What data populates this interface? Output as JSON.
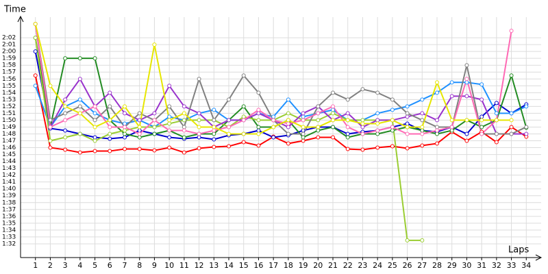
{
  "chart_data": {
    "type": "line",
    "x_label": "Laps",
    "y_label": "Time",
    "x": [
      1,
      2,
      3,
      4,
      5,
      6,
      7,
      8,
      9,
      10,
      11,
      12,
      13,
      14,
      15,
      16,
      17,
      18,
      19,
      20,
      21,
      22,
      23,
      24,
      25,
      26,
      27,
      28,
      29,
      30,
      31,
      32,
      33,
      34
    ],
    "xlim": [
      0,
      35
    ],
    "xticks": [
      1,
      2,
      3,
      4,
      5,
      6,
      7,
      8,
      9,
      10,
      11,
      12,
      13,
      14,
      15,
      16,
      17,
      18,
      19,
      20,
      21,
      22,
      23,
      24,
      25,
      26,
      27,
      28,
      29,
      30,
      31,
      32,
      33,
      34
    ],
    "ylim": [
      90,
      125
    ],
    "yticks": [
      {
        "value": 92,
        "label": "1:32"
      },
      {
        "value": 93,
        "label": "1:33"
      },
      {
        "value": 94,
        "label": "1:34"
      },
      {
        "value": 95,
        "label": "1:35"
      },
      {
        "value": 96,
        "label": "1:36"
      },
      {
        "value": 97,
        "label": "1:37"
      },
      {
        "value": 98,
        "label": "1:38"
      },
      {
        "value": 99,
        "label": "1:39"
      },
      {
        "value": 100,
        "label": "1:40"
      },
      {
        "value": 101,
        "label": "1:41"
      },
      {
        "value": 102,
        "label": "1:42"
      },
      {
        "value": 103,
        "label": "1:43"
      },
      {
        "value": 104,
        "label": "1:44"
      },
      {
        "value": 105,
        "label": "1:45"
      },
      {
        "value": 106,
        "label": "1:46"
      },
      {
        "value": 107,
        "label": "1:47"
      },
      {
        "value": 108,
        "label": "1:48"
      },
      {
        "value": 109,
        "label": "1:49"
      },
      {
        "value": 110,
        "label": "1:50"
      },
      {
        "value": 111,
        "label": "1:51"
      },
      {
        "value": 112,
        "label": "1:52"
      },
      {
        "value": 113,
        "label": "1:53"
      },
      {
        "value": 114,
        "label": "1:54"
      },
      {
        "value": 115,
        "label": "1:55"
      },
      {
        "value": 116,
        "label": "1:56"
      },
      {
        "value": 117,
        "label": "1:57"
      },
      {
        "value": 118,
        "label": "1:58"
      },
      {
        "value": 119,
        "label": "1:59"
      },
      {
        "value": 120,
        "label": "2:00"
      },
      {
        "value": 121,
        "label": "2:01"
      },
      {
        "value": 122,
        "label": "2:02"
      }
    ],
    "grid": true,
    "series": [
      {
        "color": "#ff0000",
        "values": [
          116.5,
          106,
          105.7,
          105.3,
          105.5,
          105.5,
          105.8,
          105.8,
          105.6,
          106,
          105.3,
          105.9,
          106.1,
          106.2,
          106.8,
          106.3,
          107.6,
          106.6,
          107,
          107.5,
          107.5,
          105.8,
          105.7,
          106,
          106.2,
          105.9,
          106.3,
          106.6,
          108.3,
          107,
          108.3,
          106.8,
          109,
          107.6
        ]
      },
      {
        "color": "#0000cd",
        "values": [
          120,
          108.8,
          108.5,
          108,
          107.5,
          107.3,
          107.5,
          108.5,
          108,
          107.5,
          107.3,
          107.5,
          107.2,
          107.8,
          108,
          108.5,
          107.5,
          107.8,
          108.5,
          109,
          109,
          108,
          108.3,
          108.5,
          109,
          109.5,
          108.5,
          108.3,
          109,
          108,
          110.5,
          112.5,
          111,
          112.3
        ]
      },
      {
        "color": "#1e90ff",
        "values": [
          115,
          109,
          112,
          113,
          111,
          110,
          109.5,
          110,
          109,
          110.5,
          110,
          111,
          111.5,
          110,
          110,
          111,
          110.5,
          113,
          110.5,
          111,
          111.5,
          110,
          110,
          111,
          111.5,
          112,
          113,
          114,
          115.5,
          115.5,
          115.2,
          111,
          111,
          112
        ]
      },
      {
        "color": "#228b22",
        "values": [
          122,
          109,
          119,
          119,
          119,
          110,
          108,
          107.5,
          108,
          108.5,
          107.5,
          108,
          108,
          110,
          112,
          109,
          109,
          110,
          107.5,
          108.5,
          109,
          107.5,
          108,
          108,
          108.5,
          109,
          108.5,
          108,
          108.5,
          110,
          109,
          110,
          116.5,
          108.9
        ]
      },
      {
        "color": "#9acd32",
        "values": [
          122,
          107,
          107.5,
          108,
          107,
          108,
          108.5,
          109,
          109,
          109.5,
          110,
          110,
          110,
          109,
          110.5,
          110,
          110,
          111,
          110,
          110,
          111,
          110,
          110,
          110,
          110,
          92.5,
          92.5,
          null,
          null,
          null,
          null,
          null,
          null,
          null
        ]
      },
      {
        "color": "#9932cc",
        "values": [
          124,
          109,
          113,
          116,
          112,
          114,
          111,
          110,
          111,
          115,
          112,
          111,
          109,
          110,
          110,
          111,
          110,
          109,
          111,
          112,
          110,
          111,
          109,
          110,
          110,
          110.5,
          111,
          110,
          113.5,
          113.5,
          113,
          108,
          108,
          108
        ]
      },
      {
        "color": "#808080",
        "values": [
          124,
          110,
          111,
          112,
          110,
          112,
          109,
          111,
          110,
          112,
          109,
          116,
          110,
          113,
          116.5,
          114,
          110,
          108,
          108,
          112,
          114,
          113,
          114.5,
          114,
          113,
          111,
          110,
          109,
          109,
          118,
          108,
          108,
          108,
          109
        ]
      },
      {
        "color": "#ff69b4",
        "values": [
          124,
          109,
          110,
          111,
          112,
          109,
          109,
          108,
          110,
          108.5,
          108.5,
          108,
          108.5,
          109,
          110,
          111.5,
          110,
          109.5,
          110,
          111,
          112,
          109,
          108,
          108.5,
          109,
          108,
          108,
          108.5,
          109,
          116,
          108,
          110,
          123,
          null
        ]
      },
      {
        "color": "#e6e600",
        "values": [
          124,
          115,
          112,
          111,
          109,
          110,
          112,
          109,
          121,
          110,
          111,
          109,
          109,
          108,
          108,
          108,
          109,
          110,
          109,
          109,
          110,
          110,
          109.5,
          109.5,
          110,
          109,
          109,
          115.5,
          110,
          110,
          110,
          110,
          110,
          null
        ]
      }
    ]
  }
}
